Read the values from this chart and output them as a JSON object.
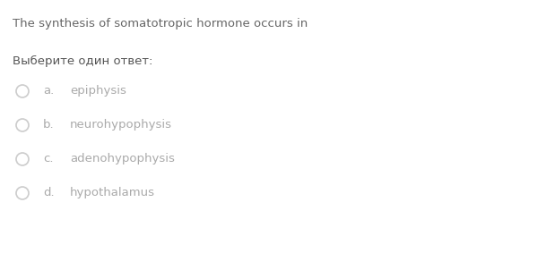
{
  "title": "The synthesis of somatotropic hormone occurs in",
  "subtitle": "Выберите один ответ:",
  "options": [
    {
      "label": "a.",
      "text": "epiphysis"
    },
    {
      "label": "b.",
      "text": "neurohypophysis"
    },
    {
      "label": "c.",
      "text": "adenohypophysis"
    },
    {
      "label": "d.",
      "text": "hypothalamus"
    }
  ],
  "title_color": "#666666",
  "subtitle_color": "#555555",
  "option_label_color": "#aaaaaa",
  "option_text_color": "#aaaaaa",
  "circle_edge_color": "#cccccc",
  "background_color": "#ffffff",
  "title_fontsize": 9.5,
  "subtitle_fontsize": 9.5,
  "option_fontsize": 9.5,
  "fig_width": 6.0,
  "fig_height": 2.83,
  "dpi": 100
}
